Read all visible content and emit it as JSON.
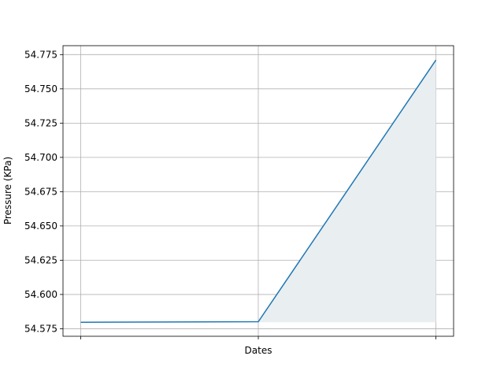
{
  "chart_data": {
    "type": "area",
    "title": "",
    "xlabel": "Dates",
    "ylabel": "Pressure (KPa)",
    "x": [
      "",
      "",
      ""
    ],
    "series": [
      {
        "values": [
          54.5797,
          54.5801,
          54.771
        ]
      }
    ],
    "fill_baseline": 54.5797,
    "ylim": [
      54.5695,
      54.7815
    ],
    "yticks": [
      54.575,
      54.6,
      54.625,
      54.65,
      54.675,
      54.7,
      54.725,
      54.75,
      54.775
    ],
    "ytick_labels": [
      "54.575",
      "54.600",
      "54.625",
      "54.650",
      "54.675",
      "54.700",
      "54.725",
      "54.750",
      "54.775"
    ],
    "grid": true,
    "colors": {
      "line": "#1f77b4",
      "fill": "#e9eef1",
      "grid": "#b0b0b0"
    }
  }
}
